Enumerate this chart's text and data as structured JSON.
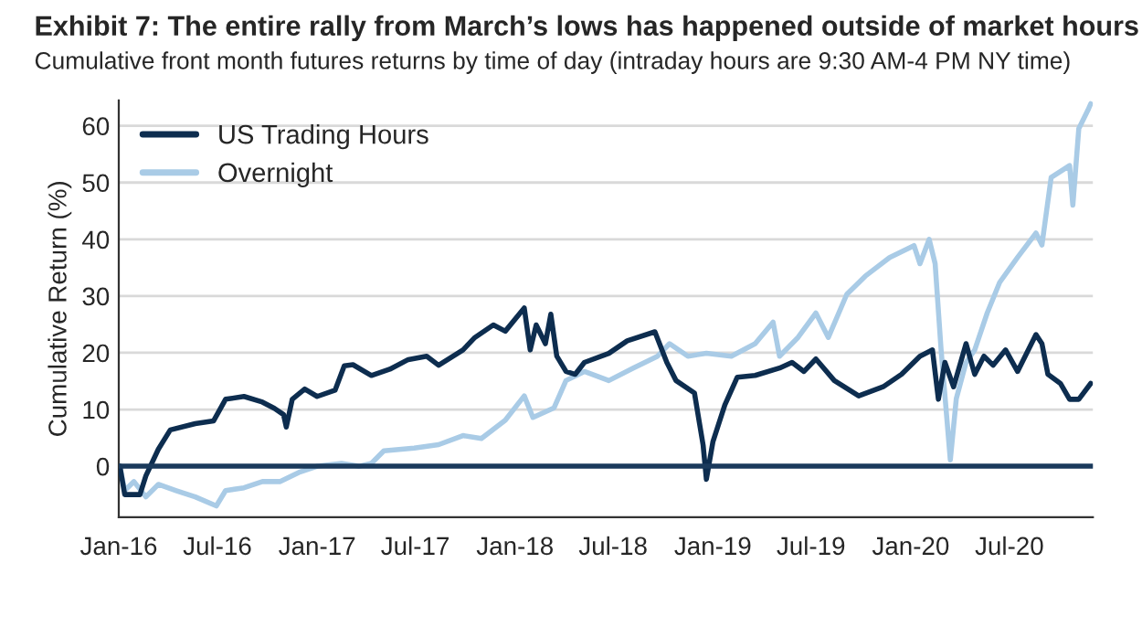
{
  "chart_data": {
    "type": "line",
    "title": "Exhibit 7: The entire rally from March’s lows has happened outside of market hours",
    "subtitle": "Cumulative front month futures returns by time of day (intraday hours are 9:30 AM-4 PM NY time)",
    "ylabel": "Cumulative Return (%)",
    "series": [
      {
        "name": "US Trading Hours",
        "color": "#0d2d4f",
        "x": [
          "2016-01-03",
          "2016-01-12",
          "2016-02-09",
          "2016-02-20",
          "2016-03-14",
          "2016-04-05",
          "2016-05-21",
          "2016-06-24",
          "2016-07-16",
          "2016-08-19",
          "2016-09-22",
          "2016-10-14",
          "2016-10-31",
          "2016-11-05",
          "2016-11-16",
          "2016-12-09",
          "2017-01-01",
          "2017-02-03",
          "2017-02-20",
          "2017-03-08",
          "2017-04-11",
          "2017-05-15",
          "2017-06-18",
          "2017-07-22",
          "2017-08-13",
          "2017-09-27",
          "2017-10-19",
          "2017-11-22",
          "2017-12-14",
          "2018-01-18",
          "2018-01-29",
          "2018-02-09",
          "2018-02-26",
          "2018-03-08",
          "2018-03-19",
          "2018-04-05",
          "2018-04-22",
          "2018-05-09",
          "2018-06-23",
          "2018-07-27",
          "2018-09-16",
          "2018-10-08",
          "2018-10-25",
          "2018-11-28",
          "2018-12-14",
          "2018-12-20",
          "2019-01-01",
          "2019-01-23",
          "2019-02-15",
          "2019-03-20",
          "2019-05-04",
          "2019-05-27",
          "2019-06-18",
          "2019-07-10",
          "2019-08-13",
          "2019-09-27",
          "2019-11-11",
          "2019-12-15",
          "2020-01-18",
          "2020-02-10",
          "2020-02-21",
          "2020-03-04",
          "2020-03-20",
          "2020-04-12",
          "2020-04-28",
          "2020-05-15",
          "2020-06-01",
          "2020-06-24",
          "2020-07-16",
          "2020-08-19",
          "2020-08-30",
          "2020-09-10",
          "2020-10-03",
          "2020-10-20",
          "2020-11-06",
          "2020-11-28"
        ],
        "values": [
          0,
          -5,
          -5,
          -1.7,
          3,
          6.4,
          7.5,
          8,
          11.8,
          12.3,
          11.3,
          10.2,
          9.1,
          6.9,
          11.8,
          13.6,
          12.3,
          13.4,
          17.7,
          17.9,
          16,
          17.1,
          18.8,
          19.4,
          17.8,
          20.5,
          22.7,
          24.9,
          23.8,
          27.9,
          20.5,
          24.9,
          21.6,
          26.8,
          19.4,
          16.7,
          16.2,
          18.3,
          19.9,
          22.1,
          23.7,
          18.3,
          15.1,
          12.9,
          3.7,
          -2.3,
          4.3,
          10.8,
          15.7,
          16,
          17.3,
          18.3,
          16.7,
          18.9,
          15.1,
          12.4,
          14,
          16.2,
          19.4,
          20.5,
          11.8,
          18.3,
          14,
          21.6,
          16.2,
          19.4,
          17.8,
          20.5,
          16.7,
          23.2,
          21.6,
          16.2,
          14.6,
          11.8,
          11.8,
          14.6
        ]
      },
      {
        "name": "Overnight",
        "color": "#a9cbe6",
        "x": [
          "2016-01-03",
          "2016-01-12",
          "2016-01-29",
          "2016-02-20",
          "2016-03-14",
          "2016-04-16",
          "2016-05-21",
          "2016-06-29",
          "2016-07-16",
          "2016-08-19",
          "2016-09-22",
          "2016-10-25",
          "2016-11-28",
          "2017-01-01",
          "2017-02-15",
          "2017-03-19",
          "2017-04-11",
          "2017-05-04",
          "2017-06-29",
          "2017-08-13",
          "2017-09-27",
          "2017-10-31",
          "2017-12-14",
          "2018-01-18",
          "2018-02-03",
          "2018-03-14",
          "2018-04-05",
          "2018-05-09",
          "2018-06-23",
          "2018-08-07",
          "2018-09-21",
          "2018-10-13",
          "2018-11-16",
          "2018-12-20",
          "2019-02-04",
          "2019-03-20",
          "2019-04-22",
          "2019-05-04",
          "2019-06-07",
          "2019-07-10",
          "2019-08-02",
          "2019-09-05",
          "2019-10-09",
          "2019-11-23",
          "2020-01-07",
          "2020-01-18",
          "2020-02-04",
          "2020-02-15",
          "2020-02-26",
          "2020-03-14",
          "2020-03-25",
          "2020-04-12",
          "2020-04-28",
          "2020-05-21",
          "2020-06-13",
          "2020-07-16",
          "2020-08-19",
          "2020-08-30",
          "2020-09-16",
          "2020-10-20",
          "2020-10-26",
          "2020-11-06",
          "2020-11-23",
          "2020-11-28"
        ],
        "values": [
          0,
          -4.3,
          -2.7,
          -5.4,
          -3.2,
          -4.3,
          -5.4,
          -7,
          -4.3,
          -3.8,
          -2.7,
          -2.7,
          -1.1,
          0,
          0.5,
          0,
          0.5,
          2.7,
          3.2,
          3.8,
          5.4,
          4.9,
          8.1,
          12.4,
          8.6,
          10.3,
          15.1,
          16.7,
          15.1,
          17.3,
          19.4,
          21.6,
          19.4,
          19.9,
          19.4,
          21.6,
          25.4,
          19.4,
          22.7,
          27,
          22.7,
          30.3,
          33.5,
          36.8,
          38.9,
          35.7,
          40,
          35.7,
          20.5,
          1.1,
          11.9,
          18.3,
          20.5,
          27,
          32.4,
          36.8,
          41.1,
          39,
          50.9,
          53,
          46,
          59.5,
          62.8,
          63.9
        ]
      }
    ],
    "xlim": [
      "2016-01-01",
      "2020-12-02"
    ],
    "xticks": [
      {
        "value": "2016-01-01",
        "label": "Jan-16"
      },
      {
        "value": "2016-07-01",
        "label": "Jul-16"
      },
      {
        "value": "2017-01-01",
        "label": "Jan-17"
      },
      {
        "value": "2017-07-01",
        "label": "Jul-17"
      },
      {
        "value": "2018-01-01",
        "label": "Jan-18"
      },
      {
        "value": "2018-07-01",
        "label": "Jul-18"
      },
      {
        "value": "2019-01-01",
        "label": "Jan-19"
      },
      {
        "value": "2019-07-01",
        "label": "Jul-19"
      },
      {
        "value": "2020-01-01",
        "label": "Jan-20"
      },
      {
        "value": "2020-07-01",
        "label": "Jul-20"
      }
    ],
    "ylim": [
      -9,
      64.5
    ],
    "yticks": [
      0,
      10,
      20,
      30,
      40,
      50,
      60
    ],
    "ref_lines": [
      {
        "axis": "y",
        "value": 0,
        "color": "#1a3a5c"
      }
    ],
    "grid": "y",
    "legend": "top left",
    "line_style": "solid",
    "marker": "none"
  }
}
